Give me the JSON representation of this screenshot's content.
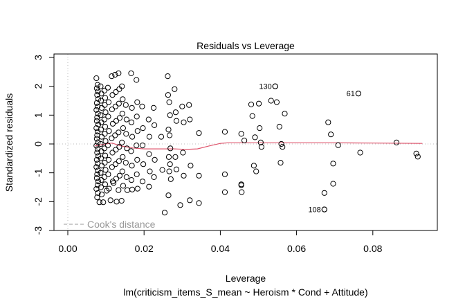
{
  "chart_data": {
    "type": "scatter",
    "title": "Residuals vs Leverage",
    "xlabel": "Leverage",
    "subtitle": "lm(criticism_items_S_mean ~ Heroism * Cond + Attitude)",
    "ylabel": "Standardized residuals",
    "xlim": [
      -0.0036,
      0.0935
    ],
    "ylim": [
      -3,
      3.12
    ],
    "x_ticks": [
      0.0,
      0.02,
      0.04,
      0.06,
      0.08
    ],
    "x_tick_labels": [
      "0.00",
      "0.02",
      "0.04",
      "0.06",
      "0.08"
    ],
    "y_ticks": [
      -3,
      -2,
      -1,
      0,
      1,
      2,
      3
    ],
    "y_tick_labels": [
      "-3",
      "-2",
      "-1",
      "0",
      "1",
      "2",
      "3"
    ],
    "grid": false,
    "reference_lines": {
      "horizontal_y": 0,
      "vertical_x": 0,
      "style": "dotted",
      "color": "#bbbbbb"
    },
    "legend": {
      "position": "bottom-left",
      "entries": [
        {
          "label": "Cook's distance",
          "style": "dashed",
          "color": "#999999"
        }
      ]
    },
    "colors": {
      "points": "#000000",
      "smoother": "#DF536B",
      "legend_text": "#999999"
    },
    "labeled_points": [
      {
        "label": "130",
        "x": 0.0544,
        "y": 2.0
      },
      {
        "label": "61",
        "x": 0.0762,
        "y": 1.75
      },
      {
        "label": "108",
        "x": 0.0673,
        "y": -2.27
      }
    ],
    "smoother": {
      "x": [
        0.0071,
        0.01,
        0.0116,
        0.014,
        0.017,
        0.02,
        0.024,
        0.028,
        0.031,
        0.034,
        0.037,
        0.04,
        0.042,
        0.05,
        0.06,
        0.07,
        0.08,
        0.093
      ],
      "y": [
        -0.07,
        0.0,
        0.03,
        -0.07,
        -0.14,
        -0.17,
        -0.17,
        -0.17,
        -0.19,
        -0.17,
        -0.07,
        0.02,
        0.04,
        0.04,
        0.04,
        0.04,
        0.03,
        0.02
      ]
    },
    "points": [
      {
        "x": 0.0075,
        "y": 2.28
      },
      {
        "x": 0.0078,
        "y": 2.05
      },
      {
        "x": 0.0076,
        "y": 1.93
      },
      {
        "x": 0.0079,
        "y": 1.82
      },
      {
        "x": 0.0077,
        "y": 1.7
      },
      {
        "x": 0.008,
        "y": 1.56
      },
      {
        "x": 0.0076,
        "y": 1.42
      },
      {
        "x": 0.0078,
        "y": 1.3
      },
      {
        "x": 0.0075,
        "y": 1.18
      },
      {
        "x": 0.0079,
        "y": 1.05
      },
      {
        "x": 0.0077,
        "y": 0.92
      },
      {
        "x": 0.0076,
        "y": 0.8
      },
      {
        "x": 0.008,
        "y": 0.68
      },
      {
        "x": 0.0075,
        "y": 0.55
      },
      {
        "x": 0.0078,
        "y": 0.43
      },
      {
        "x": 0.0077,
        "y": 0.3
      },
      {
        "x": 0.0076,
        "y": 0.18
      },
      {
        "x": 0.0079,
        "y": 0.06
      },
      {
        "x": 0.0075,
        "y": -0.06
      },
      {
        "x": 0.0078,
        "y": -0.18
      },
      {
        "x": 0.0077,
        "y": -0.3
      },
      {
        "x": 0.008,
        "y": -0.42
      },
      {
        "x": 0.0076,
        "y": -0.55
      },
      {
        "x": 0.0078,
        "y": -0.68
      },
      {
        "x": 0.0075,
        "y": -0.8
      },
      {
        "x": 0.0079,
        "y": -0.92
      },
      {
        "x": 0.0077,
        "y": -1.05
      },
      {
        "x": 0.0076,
        "y": -1.18
      },
      {
        "x": 0.008,
        "y": -1.3
      },
      {
        "x": 0.0078,
        "y": -1.43
      },
      {
        "x": 0.0075,
        "y": -1.56
      },
      {
        "x": 0.0079,
        "y": -1.7
      },
      {
        "x": 0.0077,
        "y": -1.85
      },
      {
        "x": 0.0083,
        "y": -2.02
      },
      {
        "x": 0.0086,
        "y": 2.0
      },
      {
        "x": 0.0088,
        "y": 1.75
      },
      {
        "x": 0.0087,
        "y": 1.5
      },
      {
        "x": 0.0089,
        "y": 1.25
      },
      {
        "x": 0.0086,
        "y": 1.0
      },
      {
        "x": 0.0088,
        "y": 0.75
      },
      {
        "x": 0.0087,
        "y": 0.5
      },
      {
        "x": 0.0089,
        "y": 0.25
      },
      {
        "x": 0.0086,
        "y": 0.0
      },
      {
        "x": 0.0088,
        "y": -0.25
      },
      {
        "x": 0.0087,
        "y": -0.5
      },
      {
        "x": 0.0089,
        "y": -0.75
      },
      {
        "x": 0.0086,
        "y": -1.0
      },
      {
        "x": 0.0088,
        "y": -1.25
      },
      {
        "x": 0.0087,
        "y": -1.5
      },
      {
        "x": 0.0089,
        "y": -1.75
      },
      {
        "x": 0.0093,
        "y": -2.02
      },
      {
        "x": 0.0096,
        "y": 1.85
      },
      {
        "x": 0.0098,
        "y": 1.6
      },
      {
        "x": 0.0097,
        "y": 1.35
      },
      {
        "x": 0.0099,
        "y": 1.1
      },
      {
        "x": 0.0096,
        "y": 0.85
      },
      {
        "x": 0.0098,
        "y": 0.6
      },
      {
        "x": 0.0097,
        "y": 0.35
      },
      {
        "x": 0.0099,
        "y": 0.1
      },
      {
        "x": 0.0096,
        "y": -0.15
      },
      {
        "x": 0.0098,
        "y": -0.4
      },
      {
        "x": 0.0097,
        "y": -0.65
      },
      {
        "x": 0.0099,
        "y": -0.9
      },
      {
        "x": 0.0096,
        "y": -1.15
      },
      {
        "x": 0.0098,
        "y": -1.4
      },
      {
        "x": 0.0102,
        "y": -1.62
      },
      {
        "x": 0.0105,
        "y": 1.95
      },
      {
        "x": 0.0107,
        "y": 1.45
      },
      {
        "x": 0.0106,
        "y": 0.95
      },
      {
        "x": 0.0108,
        "y": 0.45
      },
      {
        "x": 0.0105,
        "y": -0.05
      },
      {
        "x": 0.0107,
        "y": -0.55
      },
      {
        "x": 0.0106,
        "y": -1.05
      },
      {
        "x": 0.0108,
        "y": -1.55
      },
      {
        "x": 0.0112,
        "y": -1.95
      },
      {
        "x": 0.0115,
        "y": 2.35
      },
      {
        "x": 0.0117,
        "y": 1.7
      },
      {
        "x": 0.0116,
        "y": 1.2
      },
      {
        "x": 0.0118,
        "y": 0.7
      },
      {
        "x": 0.0115,
        "y": 0.2
      },
      {
        "x": 0.0117,
        "y": -0.3
      },
      {
        "x": 0.0116,
        "y": -0.8
      },
      {
        "x": 0.0118,
        "y": -1.3
      },
      {
        "x": 0.012,
        "y": -1.35
      },
      {
        "x": 0.0124,
        "y": 2.4
      },
      {
        "x": 0.0126,
        "y": 1.8
      },
      {
        "x": 0.0125,
        "y": 1.3
      },
      {
        "x": 0.0127,
        "y": 0.8
      },
      {
        "x": 0.0124,
        "y": 0.3
      },
      {
        "x": 0.0126,
        "y": -0.2
      },
      {
        "x": 0.0125,
        "y": -0.7
      },
      {
        "x": 0.0127,
        "y": -1.2
      },
      {
        "x": 0.0128,
        "y": -2.0
      },
      {
        "x": 0.0133,
        "y": 2.45
      },
      {
        "x": 0.0135,
        "y": 1.9
      },
      {
        "x": 0.0134,
        "y": 1.4
      },
      {
        "x": 0.0136,
        "y": 0.9
      },
      {
        "x": 0.0133,
        "y": 0.4
      },
      {
        "x": 0.0135,
        "y": -0.1
      },
      {
        "x": 0.0134,
        "y": -0.6
      },
      {
        "x": 0.0136,
        "y": -1.1
      },
      {
        "x": 0.0133,
        "y": -1.6
      },
      {
        "x": 0.0142,
        "y": 2.0
      },
      {
        "x": 0.0144,
        "y": 1.55
      },
      {
        "x": 0.0143,
        "y": 1.05
      },
      {
        "x": 0.0145,
        "y": 0.55
      },
      {
        "x": 0.0142,
        "y": 0.05
      },
      {
        "x": 0.0144,
        "y": -0.45
      },
      {
        "x": 0.0143,
        "y": -0.95
      },
      {
        "x": 0.0145,
        "y": -1.45
      },
      {
        "x": 0.0141,
        "y": -1.97
      },
      {
        "x": 0.0152,
        "y": 1.35
      },
      {
        "x": 0.0154,
        "y": 0.85
      },
      {
        "x": 0.0153,
        "y": 0.35
      },
      {
        "x": 0.0155,
        "y": -0.15
      },
      {
        "x": 0.0152,
        "y": -0.65
      },
      {
        "x": 0.0154,
        "y": -1.15
      },
      {
        "x": 0.0156,
        "y": -1.6
      },
      {
        "x": 0.0166,
        "y": 2.45
      },
      {
        "x": 0.0168,
        "y": 1.25
      },
      {
        "x": 0.0167,
        "y": 0.75
      },
      {
        "x": 0.0169,
        "y": 0.25
      },
      {
        "x": 0.0166,
        "y": -0.25
      },
      {
        "x": 0.0168,
        "y": -0.75
      },
      {
        "x": 0.0167,
        "y": -1.25
      },
      {
        "x": 0.0169,
        "y": -1.58
      },
      {
        "x": 0.018,
        "y": 2.22
      },
      {
        "x": 0.0182,
        "y": 1.45
      },
      {
        "x": 0.0181,
        "y": 0.95
      },
      {
        "x": 0.0183,
        "y": 0.45
      },
      {
        "x": 0.018,
        "y": -0.05
      },
      {
        "x": 0.0182,
        "y": -0.55
      },
      {
        "x": 0.0181,
        "y": -1.05
      },
      {
        "x": 0.0183,
        "y": -1.55
      },
      {
        "x": 0.0195,
        "y": 1.3
      },
      {
        "x": 0.0197,
        "y": 0.55
      },
      {
        "x": 0.0196,
        "y": -0.05
      },
      {
        "x": 0.0198,
        "y": -0.7
      },
      {
        "x": 0.0196,
        "y": -1.3
      },
      {
        "x": 0.0212,
        "y": 0.85
      },
      {
        "x": 0.0214,
        "y": 0.25
      },
      {
        "x": 0.0213,
        "y": -0.35
      },
      {
        "x": 0.0215,
        "y": -0.95
      },
      {
        "x": 0.0213,
        "y": -1.48
      },
      {
        "x": 0.0225,
        "y": 1.25
      },
      {
        "x": 0.0227,
        "y": 0.65
      },
      {
        "x": 0.0228,
        "y": -0.55
      },
      {
        "x": 0.0226,
        "y": -1.15
      },
      {
        "x": 0.0245,
        "y": 0.25
      },
      {
        "x": 0.0248,
        "y": -0.9
      },
      {
        "x": 0.0254,
        "y": -2.38
      },
      {
        "x": 0.0262,
        "y": 2.35
      },
      {
        "x": 0.0263,
        "y": 1.7
      },
      {
        "x": 0.0266,
        "y": 1.45
      },
      {
        "x": 0.0268,
        "y": 1.0
      },
      {
        "x": 0.0264,
        "y": 0.5
      },
      {
        "x": 0.0267,
        "y": 0.3
      },
      {
        "x": 0.0269,
        "y": -0.15
      },
      {
        "x": 0.0265,
        "y": -0.45
      },
      {
        "x": 0.0268,
        "y": -0.7
      },
      {
        "x": 0.0266,
        "y": -0.95
      },
      {
        "x": 0.027,
        "y": -1.22
      },
      {
        "x": 0.0264,
        "y": -1.78
      },
      {
        "x": 0.028,
        "y": 1.9
      },
      {
        "x": 0.0283,
        "y": 1.1
      },
      {
        "x": 0.0285,
        "y": 0.8
      },
      {
        "x": 0.0282,
        "y": -0.45
      },
      {
        "x": 0.0285,
        "y": -0.88
      },
      {
        "x": 0.0295,
        "y": -2.12
      },
      {
        "x": 0.03,
        "y": 1.3
      },
      {
        "x": 0.0304,
        "y": 0.75
      },
      {
        "x": 0.0302,
        "y": -0.3
      },
      {
        "x": 0.0304,
        "y": -1.1
      },
      {
        "x": 0.0318,
        "y": 1.35
      },
      {
        "x": 0.032,
        "y": 0.85
      },
      {
        "x": 0.0322,
        "y": -0.75
      },
      {
        "x": 0.032,
        "y": -1.95
      },
      {
        "x": 0.0344,
        "y": 0.38
      },
      {
        "x": 0.0344,
        "y": -1.1
      },
      {
        "x": 0.0344,
        "y": -2.05
      },
      {
        "x": 0.0412,
        "y": 0.42
      },
      {
        "x": 0.0412,
        "y": -1.05
      },
      {
        "x": 0.0412,
        "y": -1.67
      },
      {
        "x": 0.0455,
        "y": 0.35
      },
      {
        "x": 0.0455,
        "y": -1.4
      },
      {
        "x": 0.0455,
        "y": -1.43
      },
      {
        "x": 0.0456,
        "y": -1.67
      },
      {
        "x": 0.0463,
        "y": 0.12
      },
      {
        "x": 0.0481,
        "y": 1.37
      },
      {
        "x": 0.0484,
        "y": 0.97
      },
      {
        "x": 0.0488,
        "y": -0.75
      },
      {
        "x": 0.0494,
        "y": -0.95
      },
      {
        "x": 0.0491,
        "y": 0.23
      },
      {
        "x": 0.0501,
        "y": 1.4
      },
      {
        "x": 0.0503,
        "y": 0.55
      },
      {
        "x": 0.0506,
        "y": 0.05
      },
      {
        "x": 0.0508,
        "y": -0.1
      },
      {
        "x": 0.0533,
        "y": 1.5
      },
      {
        "x": 0.0544,
        "y": 2.0
      },
      {
        "x": 0.0548,
        "y": 1.45
      },
      {
        "x": 0.0555,
        "y": 0.6
      },
      {
        "x": 0.0558,
        "y": -0.65
      },
      {
        "x": 0.056,
        "y": 0.0
      },
      {
        "x": 0.0563,
        "y": -0.1
      },
      {
        "x": 0.0569,
        "y": 1.05
      },
      {
        "x": 0.0673,
        "y": -2.27
      },
      {
        "x": 0.0673,
        "y": -1.7
      },
      {
        "x": 0.0683,
        "y": 0.75
      },
      {
        "x": 0.069,
        "y": 0.33
      },
      {
        "x": 0.0696,
        "y": -0.68
      },
      {
        "x": 0.0696,
        "y": -1.38
      },
      {
        "x": 0.0709,
        "y": -0.04
      },
      {
        "x": 0.0762,
        "y": 1.75
      },
      {
        "x": 0.0767,
        "y": -0.3
      },
      {
        "x": 0.0862,
        "y": 0.05
      },
      {
        "x": 0.0914,
        "y": -0.33
      },
      {
        "x": 0.0918,
        "y": -0.44
      }
    ]
  }
}
